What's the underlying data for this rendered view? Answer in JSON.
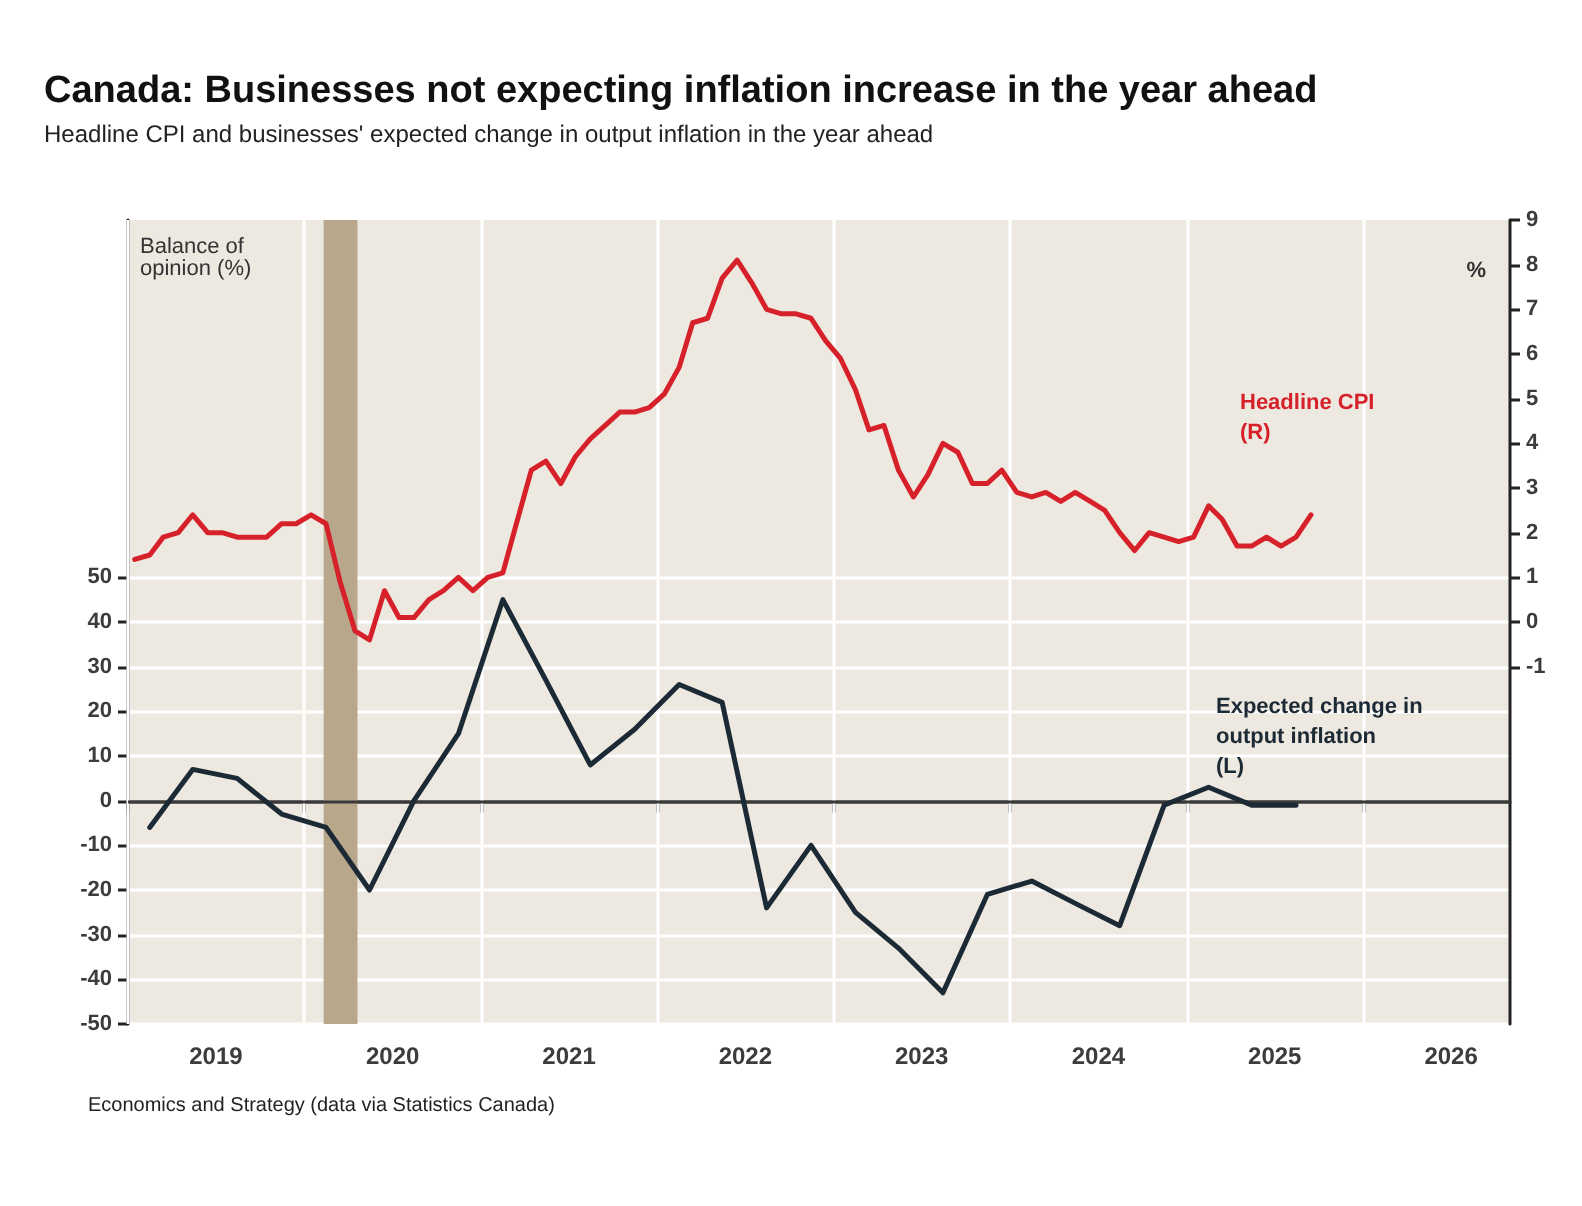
{
  "chart_data": {
    "type": "line",
    "title": "Canada: Businesses not expecting inflation increase in the year ahead",
    "subtitle": "Headline CPI and businesses' expected change in output inflation in the year ahead",
    "ylabel": "Balance of opinion (%)",
    "y2label": "%",
    "annotations": [
      "Economics and Strategy (data via Statistics Canada)"
    ],
    "xlim": [
      "2019-01-01",
      "2026-11-01"
    ],
    "xticks": [
      {
        "value": "2019-01-01",
        "label": null
      },
      {
        "value": "2019-07-02",
        "label": "2019"
      },
      {
        "value": "2020-01-01",
        "label": null
      },
      {
        "value": "2020-07-02",
        "label": "2020"
      },
      {
        "value": "2021-01-01",
        "label": null
      },
      {
        "value": "2021-07-02",
        "label": "2021"
      },
      {
        "value": "2022-01-01",
        "label": null
      },
      {
        "value": "2022-07-02",
        "label": "2022"
      },
      {
        "value": "2023-01-01",
        "label": null
      },
      {
        "value": "2023-07-02",
        "label": "2023"
      },
      {
        "value": "2024-01-01",
        "label": null
      },
      {
        "value": "2024-07-02",
        "label": "2024"
      },
      {
        "value": "2025-01-01",
        "label": null
      },
      {
        "value": "2025-07-02",
        "label": "2025"
      },
      {
        "value": "2026-01-01",
        "label": null
      },
      {
        "value": "2026-07-02",
        "label": "2026"
      }
    ],
    "ylim": [
      -50,
      130
    ],
    "yticks": [
      -50,
      -40,
      -30,
      -20,
      -10,
      0,
      10,
      20,
      30,
      40,
      50
    ],
    "y2lim": [
      -9,
      9
    ],
    "y2ticks": [
      -1,
      0,
      1,
      2,
      3,
      4,
      5,
      6,
      7,
      8,
      9
    ],
    "grid": true,
    "legend": false,
    "marker": "none",
    "line_style": "solid",
    "ref_lines": [
      {
        "axis": "y",
        "value": 0,
        "label": null,
        "color": "#3a3a3a"
      }
    ],
    "bands": [
      {
        "axis": "x",
        "from": "2020-02-10",
        "to": "2020-04-20",
        "label": null,
        "color": "#b9a78b"
      }
    ],
    "series": [
      {
        "name": "Headline CPI (R)",
        "color": "#d7212a",
        "axis": "y2",
        "x": [
          "2019-01-15",
          "2019-02-15",
          "2019-03-15",
          "2019-04-15",
          "2019-05-15",
          "2019-06-15",
          "2019-07-15",
          "2019-08-15",
          "2019-09-15",
          "2019-10-15",
          "2019-11-15",
          "2019-12-15",
          "2020-01-15",
          "2020-02-15",
          "2020-03-15",
          "2020-04-15",
          "2020-05-15",
          "2020-06-15",
          "2020-07-15",
          "2020-08-15",
          "2020-09-15",
          "2020-10-15",
          "2020-11-15",
          "2020-12-15",
          "2021-01-15",
          "2021-02-15",
          "2021-03-15",
          "2021-04-15",
          "2021-05-15",
          "2021-06-15",
          "2021-07-15",
          "2021-08-15",
          "2021-09-15",
          "2021-10-15",
          "2021-11-15",
          "2021-12-15",
          "2022-01-15",
          "2022-02-15",
          "2022-03-15",
          "2022-04-15",
          "2022-05-15",
          "2022-06-15",
          "2022-07-15",
          "2022-08-15",
          "2022-09-15",
          "2022-10-15",
          "2022-11-15",
          "2022-12-15",
          "2023-01-15",
          "2023-02-15",
          "2023-03-15",
          "2023-04-15",
          "2023-05-15",
          "2023-06-15",
          "2023-07-15",
          "2023-08-15",
          "2023-09-15",
          "2023-10-15",
          "2023-11-15",
          "2023-12-15",
          "2024-01-15",
          "2024-02-15",
          "2024-03-15",
          "2024-04-15",
          "2024-05-15",
          "2024-06-15",
          "2024-07-15",
          "2024-08-15",
          "2024-09-15",
          "2024-10-15",
          "2024-11-15",
          "2024-12-15",
          "2025-01-15",
          "2025-02-15",
          "2025-03-15",
          "2025-04-15",
          "2025-05-15",
          "2025-06-15",
          "2025-07-15",
          "2025-08-15",
          "2025-09-15"
        ],
        "values": [
          1.4,
          1.5,
          1.9,
          2.0,
          2.4,
          2.0,
          2.0,
          1.9,
          1.9,
          1.9,
          2.2,
          2.2,
          2.4,
          2.2,
          0.9,
          -0.2,
          -0.4,
          0.7,
          0.1,
          0.1,
          0.5,
          0.7,
          1.0,
          0.7,
          1.0,
          1.1,
          2.2,
          3.4,
          3.6,
          3.1,
          3.7,
          4.1,
          4.4,
          4.7,
          4.7,
          4.8,
          5.1,
          5.7,
          6.7,
          6.8,
          7.7,
          8.1,
          7.6,
          7.0,
          6.9,
          6.9,
          6.8,
          6.3,
          5.9,
          5.2,
          4.3,
          4.4,
          3.4,
          2.8,
          3.3,
          4.0,
          3.8,
          3.1,
          3.1,
          3.4,
          2.9,
          2.8,
          2.9,
          2.7,
          2.9,
          2.7,
          2.5,
          2.0,
          1.6,
          2.0,
          1.9,
          1.8,
          1.9,
          2.6,
          2.3,
          1.7,
          1.7,
          1.9,
          1.7,
          1.9,
          2.4
        ]
      },
      {
        "name": "Expected change in output inflation (L)",
        "color": "#1c2a36",
        "axis": "y",
        "x": [
          "2019-02-15",
          "2019-05-15",
          "2019-08-15",
          "2019-11-15",
          "2020-02-15",
          "2020-05-15",
          "2020-08-15",
          "2020-11-15",
          "2021-02-15",
          "2021-05-15",
          "2021-08-15",
          "2021-11-15",
          "2022-02-15",
          "2022-05-15",
          "2022-08-15",
          "2022-11-15",
          "2023-02-15",
          "2023-05-15",
          "2023-08-15",
          "2023-11-15",
          "2024-02-15",
          "2024-05-15",
          "2024-08-15",
          "2024-11-15",
          "2025-02-15",
          "2025-05-15",
          "2025-08-15"
        ],
        "values": [
          -6,
          7,
          5,
          -3,
          -6,
          -20,
          0,
          15,
          45,
          27,
          8,
          16,
          26,
          22,
          -24,
          -10,
          -25,
          -33,
          -43,
          -21,
          -18,
          -23,
          -28,
          -1,
          3,
          -1,
          -1
        ]
      }
    ]
  }
}
